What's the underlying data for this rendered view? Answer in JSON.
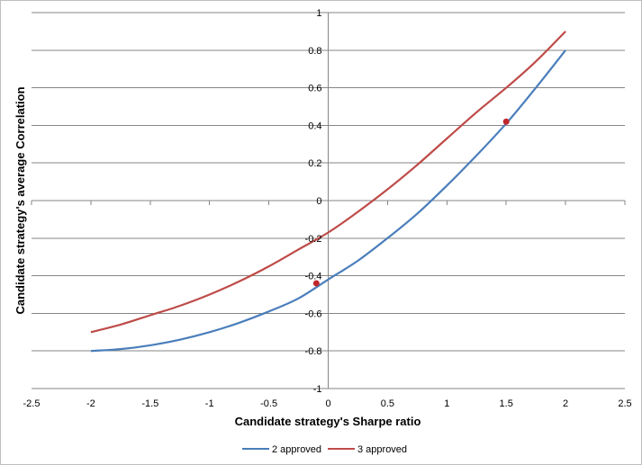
{
  "chart_data": {
    "type": "line",
    "title": "",
    "xlabel": "Candidate strategy's Sharpe ratio",
    "ylabel": "Candidate strategy's average Correlation",
    "xlim": [
      -2.5,
      2.5
    ],
    "ylim": [
      -1,
      1
    ],
    "xticks": [
      -2.5,
      -2,
      -1.5,
      -1,
      -0.5,
      0,
      0.5,
      1,
      1.5,
      2,
      2.5
    ],
    "yticks": [
      -1,
      -0.8,
      -0.6,
      -0.4,
      -0.2,
      0,
      0.2,
      0.4,
      0.6,
      0.8,
      1
    ],
    "xtick_labels": [
      "-2.5",
      "-2",
      "-1.5",
      "-1",
      "-0.5",
      "0",
      "0.5",
      "1",
      "1.5",
      "2",
      "2.5"
    ],
    "ytick_labels": [
      "-1",
      "-0.8",
      "-0.6",
      "-0.4",
      "-0.2",
      "0",
      "0.2",
      "0.4",
      "0.6",
      "0.8",
      "1"
    ],
    "grid": "horizontal",
    "legend_position": "bottom",
    "series": [
      {
        "name": "2 approved",
        "color": "#4a7ebb",
        "x": [
          -2,
          -1.75,
          -1.5,
          -1.25,
          -1,
          -0.75,
          -0.5,
          -0.25,
          0,
          0.25,
          0.5,
          0.75,
          1,
          1.25,
          1.5,
          1.75,
          2
        ],
        "y": [
          -0.8,
          -0.79,
          -0.77,
          -0.74,
          -0.7,
          -0.65,
          -0.59,
          -0.52,
          -0.42,
          -0.32,
          -0.2,
          -0.07,
          0.08,
          0.24,
          0.41,
          0.6,
          0.8
        ]
      },
      {
        "name": "3 approved",
        "color": "#be4b48",
        "x": [
          -2,
          -1.75,
          -1.5,
          -1.25,
          -1,
          -0.75,
          -0.5,
          -0.25,
          0,
          0.25,
          0.5,
          0.75,
          1,
          1.25,
          1.5,
          1.75,
          2
        ],
        "y": [
          -0.7,
          -0.66,
          -0.61,
          -0.56,
          -0.5,
          -0.43,
          -0.35,
          -0.26,
          -0.17,
          -0.06,
          0.06,
          0.19,
          0.33,
          0.47,
          0.6,
          0.74,
          0.9
        ]
      }
    ],
    "markers": [
      {
        "x": -0.1,
        "y": -0.44,
        "color": "#c0272d"
      },
      {
        "x": 1.5,
        "y": 0.42,
        "color": "#c0272d"
      }
    ]
  }
}
